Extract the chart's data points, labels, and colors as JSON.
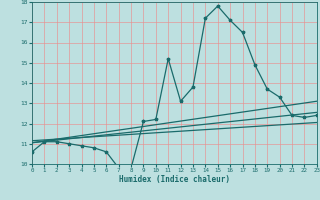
{
  "xlabel": "Humidex (Indice chaleur)",
  "ylabel": "",
  "bg_color": "#bde0e0",
  "line_color": "#1a6b6b",
  "grid_color": "#e89090",
  "x_min": 0,
  "x_max": 23,
  "y_min": 10,
  "y_max": 18,
  "x_ticks": [
    0,
    1,
    2,
    3,
    4,
    5,
    6,
    7,
    8,
    9,
    10,
    11,
    12,
    13,
    14,
    15,
    16,
    17,
    18,
    19,
    20,
    21,
    22,
    23
  ],
  "y_ticks": [
    10,
    11,
    12,
    13,
    14,
    15,
    16,
    17,
    18
  ],
  "main_line_x": [
    0,
    1,
    2,
    3,
    4,
    5,
    6,
    7,
    8,
    9,
    10,
    11,
    12,
    13,
    14,
    15,
    16,
    17,
    18,
    19,
    20,
    21,
    22,
    23
  ],
  "main_line_y": [
    10.6,
    11.1,
    11.1,
    11.0,
    10.9,
    10.8,
    10.6,
    9.8,
    9.8,
    12.1,
    12.2,
    15.2,
    13.1,
    13.8,
    17.2,
    17.8,
    17.1,
    16.5,
    14.9,
    13.7,
    13.3,
    12.4,
    12.3,
    12.4
  ],
  "trend1_x": [
    0,
    23
  ],
  "trend1_y": [
    11.05,
    13.1
  ],
  "trend2_x": [
    0,
    23
  ],
  "trend2_y": [
    11.05,
    12.55
  ],
  "trend3_x": [
    0,
    23
  ],
  "trend3_y": [
    11.15,
    12.05
  ]
}
